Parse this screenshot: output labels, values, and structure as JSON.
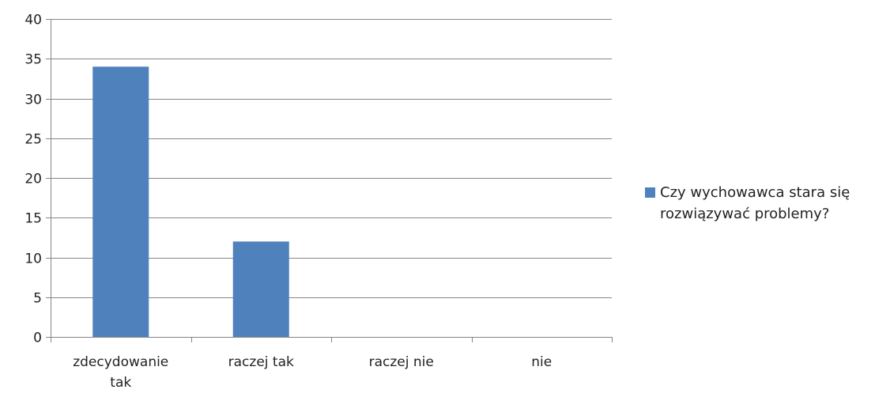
{
  "chart_data": {
    "type": "bar",
    "categories": [
      "zdecydowanie\ntak",
      "raczej tak",
      "raczej nie",
      "nie"
    ],
    "series": [
      {
        "name": "Czy wychowawca stara się\nrozwiązywać problemy?",
        "values": [
          34,
          12,
          0,
          0
        ],
        "color": "#4f81bd"
      }
    ],
    "ylim": [
      0,
      40
    ],
    "yticks": [
      0,
      5,
      10,
      15,
      20,
      25,
      30,
      35,
      40
    ],
    "grid": true,
    "legend_position": "right",
    "title": "",
    "xlabel": "",
    "ylabel": ""
  }
}
